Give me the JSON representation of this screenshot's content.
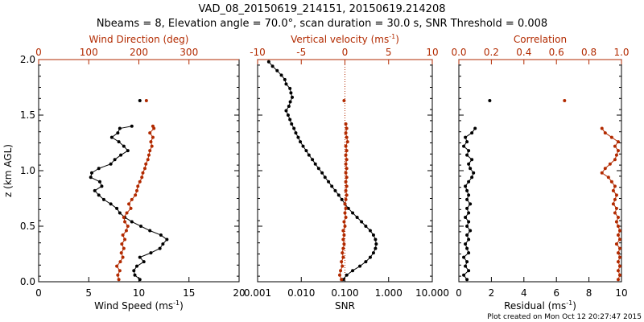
{
  "figure": {
    "title_line1": "VAD_08_20150619_214151, 20150619.214208",
    "title_line2": "Nbeams = 8, Elevation angle = 70.0°, scan duration = 30.0 s, SNR Threshold = 0.008",
    "credit": "Plot created on Mon Oct 12 20:27:47 2015",
    "colors": {
      "primary": "#000000",
      "secondary": "#b22a00"
    }
  },
  "chart_data": [
    {
      "type": "scatter",
      "name": "wind",
      "ylabel": "z (km AGL)",
      "ylim": [
        0,
        2
      ],
      "yticks": [
        "0.0",
        "0.5",
        "1.0",
        "1.5",
        "2.0"
      ],
      "bottom_axis": {
        "label": "Wind Speed (ms",
        "sup": "-1",
        "close": ")",
        "range": [
          0,
          20
        ],
        "ticks": [
          "0",
          "5",
          "10",
          "15",
          "20"
        ]
      },
      "top_axis": {
        "label": "Wind Direction (deg)",
        "range": [
          0,
          400
        ],
        "ticks": [
          "0",
          "100",
          "200",
          "300"
        ]
      },
      "series": [
        {
          "name": "Wind Speed",
          "axis": "bottom",
          "color": "#000000",
          "line": true,
          "points": [
            [
              10.1,
              0.02
            ],
            [
              9.6,
              0.06
            ],
            [
              9.5,
              0.1
            ],
            [
              9.8,
              0.14
            ],
            [
              10.5,
              0.18
            ],
            [
              10.1,
              0.22
            ],
            [
              11.2,
              0.26
            ],
            [
              12.1,
              0.3
            ],
            [
              12.4,
              0.34
            ],
            [
              12.8,
              0.38
            ],
            [
              12.2,
              0.42
            ],
            [
              11.1,
              0.46
            ],
            [
              10.2,
              0.5
            ],
            [
              9.3,
              0.54
            ],
            [
              8.6,
              0.58
            ],
            [
              8.1,
              0.62
            ],
            [
              7.8,
              0.66
            ],
            [
              7.2,
              0.7
            ],
            [
              6.5,
              0.74
            ],
            [
              6.0,
              0.78
            ],
            [
              5.6,
              0.82
            ],
            [
              6.3,
              0.86
            ],
            [
              6.1,
              0.9
            ],
            [
              5.2,
              0.94
            ],
            [
              5.3,
              0.98
            ],
            [
              6.0,
              1.02
            ],
            [
              7.2,
              1.06
            ],
            [
              7.6,
              1.1
            ],
            [
              8.2,
              1.14
            ],
            [
              8.9,
              1.18
            ],
            [
              8.5,
              1.22
            ],
            [
              8.0,
              1.26
            ],
            [
              7.3,
              1.3
            ],
            [
              7.9,
              1.34
            ],
            [
              8.1,
              1.38
            ],
            [
              9.3,
              1.4
            ],
            [
              10.1,
              1.63
            ]
          ]
        },
        {
          "name": "Wind Direction",
          "axis": "top",
          "color": "#b22a00",
          "line": true,
          "points": [
            [
              160,
              0.02
            ],
            [
              158,
              0.06
            ],
            [
              162,
              0.1
            ],
            [
              156,
              0.14
            ],
            [
              163,
              0.18
            ],
            [
              168,
              0.22
            ],
            [
              165,
              0.26
            ],
            [
              170,
              0.3
            ],
            [
              166,
              0.34
            ],
            [
              172,
              0.38
            ],
            [
              168,
              0.42
            ],
            [
              175,
              0.46
            ],
            [
              178,
              0.5
            ],
            [
              172,
              0.54
            ],
            [
              170,
              0.58
            ],
            [
              176,
              0.62
            ],
            [
              184,
              0.66
            ],
            [
              180,
              0.7
            ],
            [
              186,
              0.74
            ],
            [
              193,
              0.78
            ],
            [
              196,
              0.82
            ],
            [
              198,
              0.86
            ],
            [
              202,
              0.9
            ],
            [
              206,
              0.94
            ],
            [
              208,
              0.98
            ],
            [
              212,
              1.02
            ],
            [
              214,
              1.06
            ],
            [
              218,
              1.1
            ],
            [
              220,
              1.14
            ],
            [
              222,
              1.18
            ],
            [
              226,
              1.22
            ],
            [
              224,
              1.26
            ],
            [
              228,
              1.3
            ],
            [
              222,
              1.34
            ],
            [
              230,
              1.38
            ],
            [
              228,
              1.4
            ],
            [
              215,
              1.63
            ]
          ]
        }
      ]
    },
    {
      "type": "scatter",
      "name": "snr-vertical-velocity",
      "ylim": [
        0,
        2
      ],
      "bottom_axis": {
        "label": "SNR",
        "scale": "log",
        "range": [
          0.001,
          10
        ],
        "ticks": [
          "0.001",
          "0.010",
          "0.100",
          "1.000",
          "10.000"
        ]
      },
      "top_axis": {
        "label": "Vertical velocity (ms",
        "sup": "-1",
        "close": ")",
        "range": [
          -10,
          10
        ],
        "ticks": [
          "-10",
          "-5",
          "0",
          "5",
          "10"
        ]
      },
      "reference_line": {
        "axis": "top",
        "value": 0,
        "style": "dotted",
        "color": "#b22a00"
      },
      "series": [
        {
          "name": "SNR",
          "axis": "bottom",
          "color": "#000000",
          "line": true,
          "points": [
            [
              0.09,
              0.02
            ],
            [
              0.11,
              0.06
            ],
            [
              0.15,
              0.1
            ],
            [
              0.22,
              0.14
            ],
            [
              0.3,
              0.18
            ],
            [
              0.38,
              0.22
            ],
            [
              0.45,
              0.26
            ],
            [
              0.5,
              0.3
            ],
            [
              0.52,
              0.34
            ],
            [
              0.5,
              0.38
            ],
            [
              0.45,
              0.42
            ],
            [
              0.38,
              0.46
            ],
            [
              0.3,
              0.5
            ],
            [
              0.24,
              0.54
            ],
            [
              0.19,
              0.58
            ],
            [
              0.15,
              0.62
            ],
            [
              0.12,
              0.66
            ],
            [
              0.1,
              0.7
            ],
            [
              0.085,
              0.74
            ],
            [
              0.072,
              0.78
            ],
            [
              0.06,
              0.82
            ],
            [
              0.05,
              0.86
            ],
            [
              0.042,
              0.9
            ],
            [
              0.035,
              0.94
            ],
            [
              0.03,
              0.98
            ],
            [
              0.025,
              1.02
            ],
            [
              0.021,
              1.06
            ],
            [
              0.018,
              1.1
            ],
            [
              0.015,
              1.14
            ],
            [
              0.013,
              1.18
            ],
            [
              0.011,
              1.22
            ],
            [
              0.0095,
              1.26
            ],
            [
              0.0085,
              1.3
            ],
            [
              0.0075,
              1.34
            ],
            [
              0.0068,
              1.38
            ],
            [
              0.006,
              1.42
            ],
            [
              0.0055,
              1.46
            ],
            [
              0.005,
              1.5
            ],
            [
              0.0045,
              1.54
            ],
            [
              0.0052,
              1.58
            ],
            [
              0.0056,
              1.62
            ],
            [
              0.0062,
              1.66
            ],
            [
              0.0058,
              1.7
            ],
            [
              0.0055,
              1.74
            ],
            [
              0.0045,
              1.78
            ],
            [
              0.0042,
              1.82
            ],
            [
              0.0035,
              1.86
            ],
            [
              0.0028,
              1.9
            ],
            [
              0.0022,
              1.94
            ],
            [
              0.0018,
              1.98
            ]
          ]
        },
        {
          "name": "Vertical velocity",
          "axis": "top",
          "color": "#b22a00",
          "line": true,
          "points": [
            [
              -0.4,
              0.02
            ],
            [
              -0.6,
              0.06
            ],
            [
              -0.5,
              0.1
            ],
            [
              -0.3,
              0.14
            ],
            [
              -0.4,
              0.18
            ],
            [
              -0.2,
              0.22
            ],
            [
              -0.3,
              0.26
            ],
            [
              -0.2,
              0.3
            ],
            [
              -0.1,
              0.34
            ],
            [
              -0.2,
              0.38
            ],
            [
              -0.1,
              0.42
            ],
            [
              -0.2,
              0.46
            ],
            [
              0.0,
              0.5
            ],
            [
              -0.1,
              0.54
            ],
            [
              0.1,
              0.58
            ],
            [
              0.0,
              0.62
            ],
            [
              0.1,
              0.66
            ],
            [
              0.0,
              0.7
            ],
            [
              0.1,
              0.74
            ],
            [
              0.2,
              0.78
            ],
            [
              0.1,
              0.82
            ],
            [
              0.2,
              0.86
            ],
            [
              0.1,
              0.9
            ],
            [
              0.2,
              0.94
            ],
            [
              0.1,
              0.98
            ],
            [
              0.2,
              1.02
            ],
            [
              0.1,
              1.06
            ],
            [
              0.2,
              1.1
            ],
            [
              0.1,
              1.14
            ],
            [
              0.2,
              1.18
            ],
            [
              0.1,
              1.22
            ],
            [
              0.3,
              1.26
            ],
            [
              0.2,
              1.3
            ],
            [
              0.1,
              1.34
            ],
            [
              0.2,
              1.38
            ],
            [
              0.1,
              1.42
            ],
            [
              -0.1,
              1.63
            ]
          ]
        }
      ]
    },
    {
      "type": "scatter",
      "name": "residual-correlation",
      "ylim": [
        0,
        2
      ],
      "bottom_axis": {
        "label": "Residual (ms",
        "sup": "-1",
        "close": ")",
        "range": [
          0,
          10
        ],
        "ticks": [
          "0",
          "2",
          "4",
          "6",
          "8",
          "10"
        ]
      },
      "top_axis": {
        "label": "Correlation",
        "range": [
          0,
          1
        ],
        "ticks": [
          "0.0",
          "0.2",
          "0.4",
          "0.6",
          "0.8",
          "1.0"
        ]
      },
      "series": [
        {
          "name": "Residual",
          "axis": "bottom",
          "color": "#000000",
          "line": true,
          "points": [
            [
              0.5,
              0.02
            ],
            [
              0.3,
              0.06
            ],
            [
              0.6,
              0.1
            ],
            [
              0.4,
              0.14
            ],
            [
              0.5,
              0.18
            ],
            [
              0.3,
              0.22
            ],
            [
              0.6,
              0.26
            ],
            [
              0.5,
              0.3
            ],
            [
              0.4,
              0.34
            ],
            [
              0.6,
              0.38
            ],
            [
              0.5,
              0.42
            ],
            [
              0.7,
              0.46
            ],
            [
              0.5,
              0.5
            ],
            [
              0.6,
              0.54
            ],
            [
              0.4,
              0.58
            ],
            [
              0.6,
              0.62
            ],
            [
              0.5,
              0.66
            ],
            [
              0.7,
              0.7
            ],
            [
              0.5,
              0.74
            ],
            [
              0.6,
              0.78
            ],
            [
              0.5,
              0.82
            ],
            [
              0.4,
              0.86
            ],
            [
              0.6,
              0.9
            ],
            [
              0.8,
              0.94
            ],
            [
              0.9,
              0.98
            ],
            [
              0.7,
              1.02
            ],
            [
              0.6,
              1.06
            ],
            [
              0.8,
              1.1
            ],
            [
              0.5,
              1.14
            ],
            [
              0.6,
              1.18
            ],
            [
              0.3,
              1.22
            ],
            [
              0.5,
              1.26
            ],
            [
              0.4,
              1.3
            ],
            [
              0.8,
              1.34
            ],
            [
              1.0,
              1.38
            ],
            [
              1.9,
              1.63
            ]
          ]
        },
        {
          "name": "Correlation",
          "axis": "top",
          "color": "#b22a00",
          "line": true,
          "points": [
            [
              0.98,
              0.02
            ],
            [
              0.99,
              0.06
            ],
            [
              0.98,
              0.1
            ],
            [
              0.99,
              0.14
            ],
            [
              0.98,
              0.18
            ],
            [
              0.99,
              0.22
            ],
            [
              0.98,
              0.26
            ],
            [
              0.99,
              0.3
            ],
            [
              0.97,
              0.34
            ],
            [
              0.99,
              0.38
            ],
            [
              0.98,
              0.42
            ],
            [
              0.99,
              0.46
            ],
            [
              0.98,
              0.5
            ],
            [
              0.97,
              0.54
            ],
            [
              0.98,
              0.58
            ],
            [
              0.96,
              0.62
            ],
            [
              0.97,
              0.66
            ],
            [
              0.95,
              0.7
            ],
            [
              0.96,
              0.74
            ],
            [
              0.97,
              0.78
            ],
            [
              0.95,
              0.82
            ],
            [
              0.96,
              0.86
            ],
            [
              0.94,
              0.9
            ],
            [
              0.92,
              0.94
            ],
            [
              0.88,
              0.98
            ],
            [
              0.9,
              1.02
            ],
            [
              0.93,
              1.06
            ],
            [
              0.96,
              1.1
            ],
            [
              0.97,
              1.14
            ],
            [
              0.98,
              1.18
            ],
            [
              0.96,
              1.22
            ],
            [
              0.98,
              1.26
            ],
            [
              0.94,
              1.3
            ],
            [
              0.9,
              1.34
            ],
            [
              0.88,
              1.38
            ],
            [
              0.65,
              1.63
            ]
          ]
        }
      ]
    }
  ]
}
